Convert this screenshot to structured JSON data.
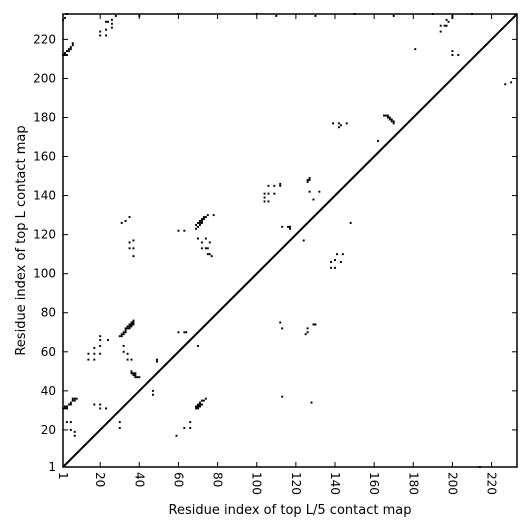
{
  "chart_data": {
    "type": "heatmap",
    "title": "",
    "xlabel": "Residue index of top L/5 contact map",
    "ylabel": "Residue index of top L contact map",
    "xlim": [
      1,
      233
    ],
    "ylim": [
      1,
      233
    ],
    "x_ticks": [
      1,
      20,
      40,
      60,
      80,
      100,
      120,
      140,
      160,
      180,
      200,
      220
    ],
    "y_ticks": [
      1,
      20,
      40,
      60,
      80,
      100,
      120,
      140,
      160,
      180,
      200,
      220
    ],
    "x_tick_rotation": -90,
    "diagonal": true,
    "grid": false,
    "upper_triangle_points": [
      [
        1,
        212
      ],
      [
        2,
        213
      ],
      [
        3,
        214
      ],
      [
        4,
        215
      ],
      [
        5,
        216
      ],
      [
        6,
        217
      ],
      [
        6,
        218
      ],
      [
        5,
        215
      ],
      [
        4,
        214
      ],
      [
        3,
        212
      ],
      [
        2,
        212
      ],
      [
        20,
        222
      ],
      [
        20,
        224
      ],
      [
        23,
        222
      ],
      [
        23,
        225
      ],
      [
        23,
        229
      ],
      [
        24,
        229
      ],
      [
        26,
        226
      ],
      [
        26,
        228
      ],
      [
        26,
        230
      ],
      [
        1,
        230
      ],
      [
        2,
        231
      ],
      [
        3,
        233
      ],
      [
        28,
        232
      ],
      [
        40,
        232
      ],
      [
        60,
        233
      ],
      [
        100,
        233
      ],
      [
        110,
        232
      ],
      [
        130,
        232
      ],
      [
        150,
        233
      ],
      [
        170,
        232
      ],
      [
        190,
        233
      ],
      [
        200,
        232
      ],
      [
        210,
        233
      ]
    ],
    "lower_triangle_points": [
      [
        1,
        31
      ],
      [
        2,
        31
      ],
      [
        2,
        32
      ],
      [
        3,
        31
      ],
      [
        3,
        32
      ],
      [
        4,
        33
      ],
      [
        5,
        33
      ],
      [
        6,
        35
      ],
      [
        7,
        35
      ],
      [
        7,
        36
      ],
      [
        8,
        36
      ],
      [
        5,
        34
      ],
      [
        6,
        36
      ],
      [
        3,
        24
      ],
      [
        5,
        24
      ],
      [
        5,
        20
      ],
      [
        7,
        19
      ],
      [
        7,
        17
      ],
      [
        14,
        56
      ],
      [
        14,
        59
      ],
      [
        17,
        56
      ],
      [
        17,
        59
      ],
      [
        17,
        62
      ],
      [
        20,
        59
      ],
      [
        20,
        63
      ],
      [
        20,
        66
      ],
      [
        20,
        68
      ],
      [
        24,
        66
      ],
      [
        17,
        33
      ],
      [
        20,
        31
      ],
      [
        20,
        33
      ],
      [
        23,
        31
      ],
      [
        30,
        21
      ],
      [
        30,
        24
      ],
      [
        30,
        68
      ],
      [
        31,
        69
      ],
      [
        32,
        69
      ],
      [
        32,
        70
      ],
      [
        33,
        71
      ],
      [
        33,
        72
      ],
      [
        34,
        72
      ],
      [
        34,
        73
      ],
      [
        35,
        73
      ],
      [
        35,
        74
      ],
      [
        36,
        74
      ],
      [
        36,
        75
      ],
      [
        37,
        75
      ],
      [
        37,
        76
      ],
      [
        31,
        68
      ],
      [
        33,
        70
      ],
      [
        35,
        72
      ],
      [
        36,
        73
      ],
      [
        37,
        74
      ],
      [
        32,
        63
      ],
      [
        32,
        60
      ],
      [
        34,
        59
      ],
      [
        34,
        56
      ],
      [
        36,
        56
      ],
      [
        36,
        50
      ],
      [
        37,
        49
      ],
      [
        37,
        48
      ],
      [
        38,
        48
      ],
      [
        38,
        47
      ],
      [
        39,
        47
      ],
      [
        40,
        47
      ],
      [
        36,
        49
      ],
      [
        38,
        49
      ],
      [
        47,
        40
      ],
      [
        47,
        38
      ],
      [
        49,
        56
      ],
      [
        49,
        55
      ],
      [
        31,
        126
      ],
      [
        33,
        127
      ],
      [
        35,
        129
      ],
      [
        35,
        116
      ],
      [
        35,
        113
      ],
      [
        37,
        117
      ],
      [
        37,
        113
      ],
      [
        37,
        109
      ],
      [
        59,
        17
      ],
      [
        63,
        21
      ],
      [
        66,
        21
      ],
      [
        66,
        24
      ],
      [
        60,
        70
      ],
      [
        63,
        70
      ],
      [
        64,
        70
      ],
      [
        60,
        122
      ],
      [
        63,
        122
      ],
      [
        69,
        31
      ],
      [
        70,
        32
      ],
      [
        70,
        33
      ],
      [
        71,
        32
      ],
      [
        71,
        34
      ],
      [
        72,
        33
      ],
      [
        72,
        35
      ],
      [
        73,
        35
      ],
      [
        74,
        36
      ],
      [
        69,
        32
      ],
      [
        70,
        31
      ],
      [
        71,
        33
      ],
      [
        70,
        63
      ],
      [
        69,
        125
      ],
      [
        70,
        126
      ],
      [
        71,
        126
      ],
      [
        71,
        127
      ],
      [
        72,
        127
      ],
      [
        72,
        128
      ],
      [
        73,
        128
      ],
      [
        73,
        129
      ],
      [
        74,
        129
      ],
      [
        75,
        130
      ],
      [
        69,
        123
      ],
      [
        70,
        124
      ],
      [
        71,
        125
      ],
      [
        72,
        126
      ],
      [
        70,
        118
      ],
      [
        72,
        116
      ],
      [
        72,
        113
      ],
      [
        74,
        113
      ],
      [
        75,
        113
      ],
      [
        75,
        110
      ],
      [
        76,
        110
      ],
      [
        77,
        109
      ],
      [
        76,
        116
      ],
      [
        74,
        118
      ],
      [
        78,
        130
      ],
      [
        104,
        137
      ],
      [
        104,
        139
      ],
      [
        104,
        141
      ],
      [
        106,
        137
      ],
      [
        106,
        141
      ],
      [
        106,
        145
      ],
      [
        109,
        141
      ],
      [
        109,
        145
      ],
      [
        112,
        145
      ],
      [
        112,
        146
      ],
      [
        113,
        124
      ],
      [
        116,
        124
      ],
      [
        117,
        123
      ],
      [
        117,
        124
      ],
      [
        112,
        75
      ],
      [
        113,
        72
      ],
      [
        113,
        37
      ],
      [
        124,
        117
      ],
      [
        125,
        69
      ],
      [
        126,
        70
      ],
      [
        126,
        72
      ],
      [
        126,
        147
      ],
      [
        127,
        148
      ],
      [
        127,
        149
      ],
      [
        126,
        148
      ],
      [
        127,
        142
      ],
      [
        129,
        138
      ],
      [
        129,
        74
      ],
      [
        130,
        74
      ],
      [
        128,
        34
      ],
      [
        132,
        142
      ],
      [
        138,
        103
      ],
      [
        138,
        106
      ],
      [
        139,
        177
      ],
      [
        140,
        103
      ],
      [
        140,
        107
      ],
      [
        141,
        110
      ],
      [
        142,
        177
      ],
      [
        142,
        175
      ],
      [
        143,
        176
      ],
      [
        143,
        106
      ],
      [
        144,
        110
      ],
      [
        146,
        177
      ],
      [
        148,
        126
      ],
      [
        162,
        168
      ],
      [
        165,
        181
      ],
      [
        166,
        181
      ],
      [
        167,
        180
      ],
      [
        168,
        180
      ],
      [
        168,
        179
      ],
      [
        169,
        178
      ],
      [
        170,
        178
      ],
      [
        170,
        177
      ],
      [
        167,
        181
      ],
      [
        169,
        179
      ],
      [
        181,
        215
      ],
      [
        194,
        224
      ],
      [
        194,
        227
      ],
      [
        196,
        227
      ],
      [
        197,
        230
      ],
      [
        197,
        227
      ],
      [
        198,
        229
      ],
      [
        200,
        231
      ],
      [
        200,
        214
      ],
      [
        200,
        212
      ],
      [
        203,
        212
      ],
      [
        214,
        1
      ],
      [
        227,
        197
      ],
      [
        230,
        198
      ]
    ]
  }
}
